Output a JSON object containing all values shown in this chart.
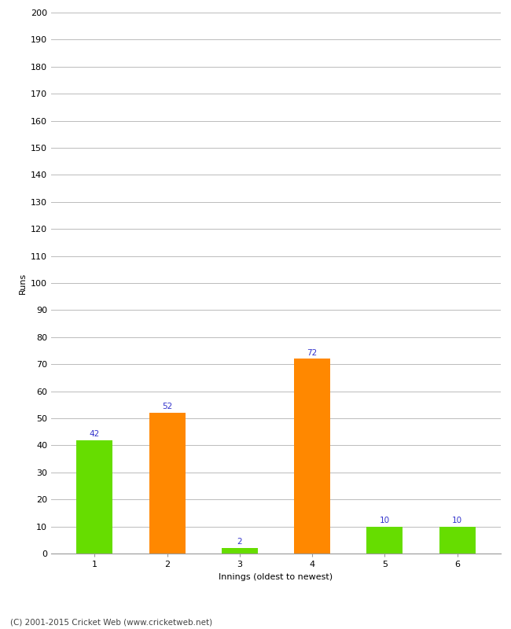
{
  "categories": [
    1,
    2,
    3,
    4,
    5,
    6
  ],
  "values": [
    42,
    52,
    2,
    72,
    10,
    10
  ],
  "bar_colors": [
    "#66dd00",
    "#ff8800",
    "#66dd00",
    "#ff8800",
    "#66dd00",
    "#66dd00"
  ],
  "xlabel": "Innings (oldest to newest)",
  "ylabel": "Runs",
  "ylim": [
    0,
    200
  ],
  "yticks": [
    0,
    10,
    20,
    30,
    40,
    50,
    60,
    70,
    80,
    90,
    100,
    110,
    120,
    130,
    140,
    150,
    160,
    170,
    180,
    190,
    200
  ],
  "label_color": "#3333cc",
  "footer": "(C) 2001-2015 Cricket Web (www.cricketweb.net)",
  "background_color": "#ffffff",
  "bar_width": 0.5,
  "grid_color": "#bbbbbb",
  "spine_color": "#999999",
  "tick_label_fontsize": 8,
  "axis_label_fontsize": 8,
  "value_label_fontsize": 7.5
}
